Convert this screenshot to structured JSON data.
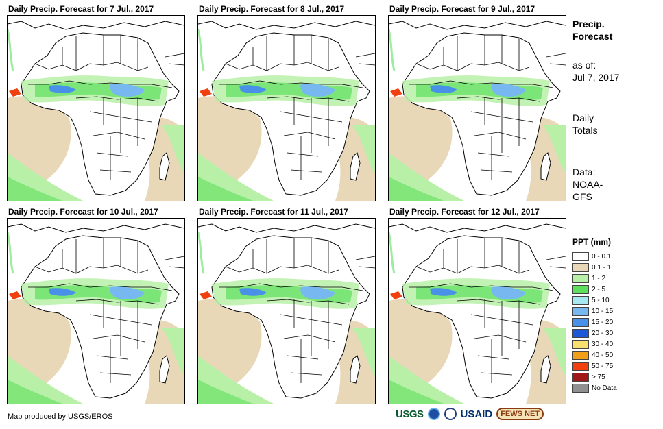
{
  "panels": [
    {
      "title": "Daily Precip. Forecast for 7 Jul., 2017"
    },
    {
      "title": "Daily Precip. Forecast for 8 Jul., 2017"
    },
    {
      "title": "Daily Precip. Forecast for 9 Jul., 2017"
    },
    {
      "title": "Daily Precip. Forecast for 10 Jul., 2017"
    },
    {
      "title": "Daily Precip. Forecast for 11 Jul., 2017"
    },
    {
      "title": "Daily Precip. Forecast for 12 Jul., 2017"
    }
  ],
  "sidebar": {
    "heading_line1": "Precip.",
    "heading_line2": "Forecast",
    "asof_label": "as of:",
    "asof_date": "Jul 7, 2017",
    "totals_line1": "Daily",
    "totals_line2": "Totals",
    "data_line1": "Data:",
    "data_line2": "NOAA-",
    "data_line3": "GFS"
  },
  "legend": {
    "title": "PPT (mm)",
    "items": [
      {
        "label": "0 - 0.1",
        "color": "#ffffff"
      },
      {
        "label": "0.1 - 1",
        "color": "#e8d8b8"
      },
      {
        "label": "1 - 2",
        "color": "#b8f0a8"
      },
      {
        "label": "2 - 5",
        "color": "#5ee05e"
      },
      {
        "label": "5 - 10",
        "color": "#a8e8f0"
      },
      {
        "label": "10 - 15",
        "color": "#78b8f0"
      },
      {
        "label": "15 - 20",
        "color": "#4890e8"
      },
      {
        "label": "20 - 30",
        "color": "#1e5ad8"
      },
      {
        "label": "30 - 40",
        "color": "#f8e070"
      },
      {
        "label": "40 - 50",
        "color": "#f0a018"
      },
      {
        "label": "50 - 75",
        "color": "#f04010"
      },
      {
        "label": "> 75",
        "color": "#a01818"
      },
      {
        "label": "No Data",
        "color": "#909090"
      }
    ]
  },
  "footer": {
    "credit": "Map produced by USGS/EROS",
    "logo_usgs": "USGS",
    "logo_usaid": "USAID",
    "logo_fews": "FEWS NET"
  }
}
